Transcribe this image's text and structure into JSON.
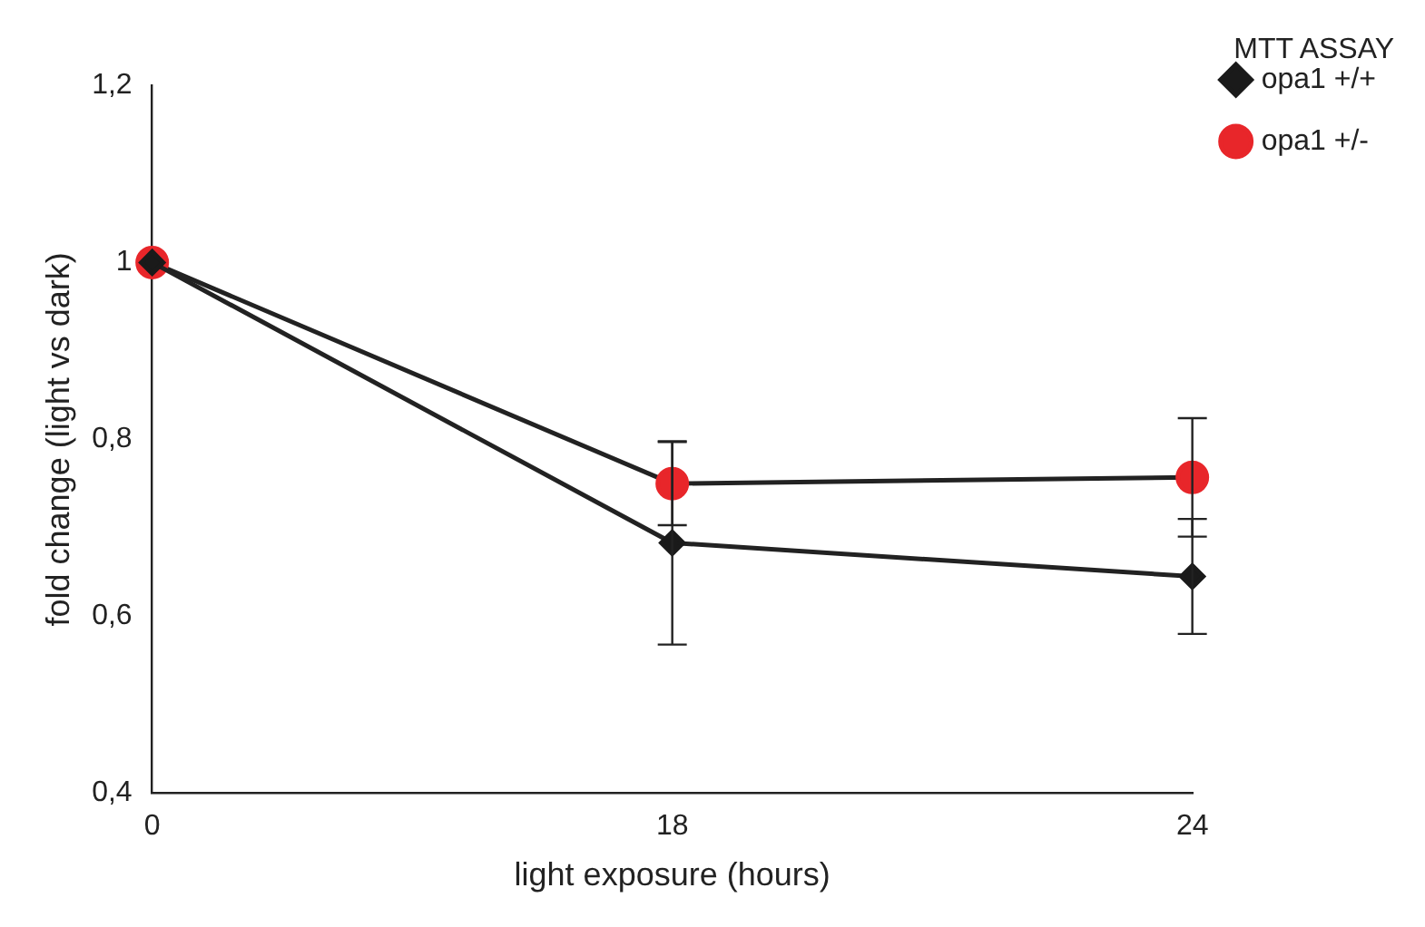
{
  "chart_data": {
    "type": "line",
    "title": "MTT ASSAY",
    "xlabel": "light exposure (hours)",
    "ylabel": "fold change (light vs dark)",
    "categories": [
      "0",
      "18",
      "24"
    ],
    "series": [
      {
        "name": "opa1 +/+",
        "color": "#1a1a1a",
        "marker": "diamond",
        "values": [
          1,
          0.683,
          0.645
        ],
        "errors": [
          null,
          0.115,
          0.065
        ]
      },
      {
        "name": "opa1 +/-",
        "color": "#e8262a",
        "marker": "circle",
        "values": [
          1,
          0.75,
          0.757
        ],
        "errors": [
          null,
          0.047,
          0.067
        ]
      }
    ],
    "ylim": [
      0.4,
      1.2
    ],
    "yticks": [
      {
        "value": 0.4,
        "label": "0,4"
      },
      {
        "value": 0.6,
        "label": "0,6"
      },
      {
        "value": 0.8,
        "label": "0,8"
      },
      {
        "value": 1,
        "label": "1"
      },
      {
        "value": 1.2,
        "label": "1,2"
      }
    ],
    "grid": false,
    "legend": "right",
    "line_style": "solid"
  }
}
